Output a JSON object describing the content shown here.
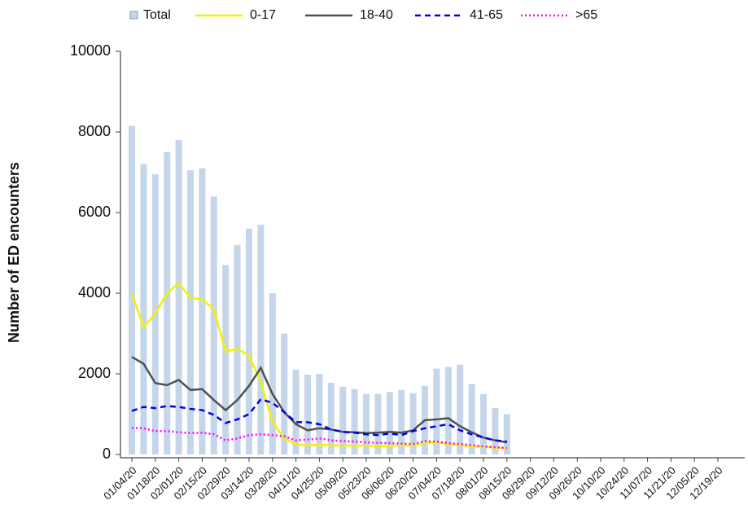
{
  "chart_data": {
    "type": "bar-line",
    "y_label": "Number of ED encounters",
    "categories": [
      "01/04/20",
      null,
      "01/18/20",
      null,
      "02/01/20",
      null,
      "02/15/20",
      null,
      "02/29/20",
      null,
      "03/14/20",
      null,
      "03/28/20",
      null,
      "04/11/20",
      null,
      "04/25/20",
      null,
      "05/09/20",
      null,
      "05/23/20",
      null,
      "06/06/20",
      null,
      "06/20/20",
      null,
      "07/04/20",
      null,
      "07/18/20",
      null,
      "08/01/20",
      null,
      "08/15/20",
      null,
      "08/29/20",
      null,
      "09/12/20",
      null,
      "09/26/20",
      null,
      "10/10/20",
      null,
      "10/24/20",
      null,
      "11/07/20",
      null,
      "11/21/20",
      null,
      "12/05/20",
      null,
      "12/19/20",
      null
    ],
    "series": [
      {
        "name": "Total",
        "kind": "bar",
        "color": "#c6d6ea",
        "values": [
          8150,
          7200,
          6950,
          7500,
          7800,
          7050,
          7100,
          6400,
          4700,
          5200,
          5600,
          5700,
          4000,
          3000,
          2100,
          1980,
          2000,
          1780,
          1680,
          1620,
          1500,
          1500,
          1550,
          1600,
          1520,
          1700,
          2130,
          2170,
          2230,
          1750,
          1500,
          1150,
          1000,
          null,
          null,
          null,
          null,
          null,
          null,
          null,
          null,
          null,
          null,
          null,
          null,
          null,
          null,
          null,
          null,
          null,
          null,
          null
        ]
      },
      {
        "name": "0-17",
        "kind": "line",
        "color": "#f2f200",
        "dash": "none",
        "values": [
          4000,
          3150,
          3500,
          4000,
          4250,
          3880,
          3850,
          3600,
          2550,
          2620,
          2450,
          1800,
          800,
          400,
          250,
          230,
          240,
          230,
          220,
          220,
          220,
          210,
          210,
          230,
          220,
          280,
          300,
          260,
          230,
          200,
          190,
          170,
          160,
          null,
          null,
          null,
          null,
          null,
          null,
          null,
          null,
          null,
          null,
          null,
          null,
          null,
          null,
          null,
          null,
          null,
          null,
          null
        ]
      },
      {
        "name": "18-40",
        "kind": "line",
        "color": "#505050",
        "dash": "none",
        "values": [
          2420,
          2250,
          1770,
          1720,
          1850,
          1600,
          1620,
          1350,
          1100,
          1350,
          1700,
          2150,
          1500,
          1050,
          750,
          600,
          650,
          620,
          560,
          550,
          530,
          540,
          560,
          540,
          600,
          850,
          870,
          900,
          700,
          550,
          420,
          350,
          300,
          null,
          null,
          null,
          null,
          null,
          null,
          null,
          null,
          null,
          null,
          null,
          null,
          null,
          null,
          null,
          null,
          null,
          null,
          null
        ]
      },
      {
        "name": "41-65",
        "kind": "line",
        "color": "#0000ee",
        "dash": "7 5",
        "values": [
          1080,
          1180,
          1150,
          1200,
          1180,
          1130,
          1100,
          980,
          780,
          870,
          1000,
          1370,
          1280,
          1050,
          800,
          800,
          750,
          620,
          560,
          540,
          500,
          480,
          520,
          480,
          580,
          650,
          700,
          750,
          600,
          500,
          420,
          350,
          320,
          null,
          null,
          null,
          null,
          null,
          null,
          null,
          null,
          null,
          null,
          null,
          null,
          null,
          null,
          null,
          null,
          null,
          null,
          null
        ]
      },
      {
        "name": ">65",
        "kind": "line",
        "color": "#ff00ff",
        "dash": "2 3",
        "values": [
          660,
          650,
          580,
          580,
          550,
          530,
          540,
          500,
          350,
          400,
          480,
          500,
          480,
          450,
          350,
          370,
          400,
          350,
          330,
          320,
          300,
          290,
          280,
          270,
          260,
          330,
          320,
          280,
          260,
          230,
          200,
          180,
          160,
          null,
          null,
          null,
          null,
          null,
          null,
          null,
          null,
          null,
          null,
          null,
          null,
          null,
          null,
          null,
          null,
          null,
          null,
          null
        ]
      }
    ],
    "ylim": [
      0,
      10000
    ],
    "yticks": [
      0,
      2000,
      4000,
      6000,
      8000,
      10000
    ],
    "grid": false,
    "legend": "top"
  }
}
